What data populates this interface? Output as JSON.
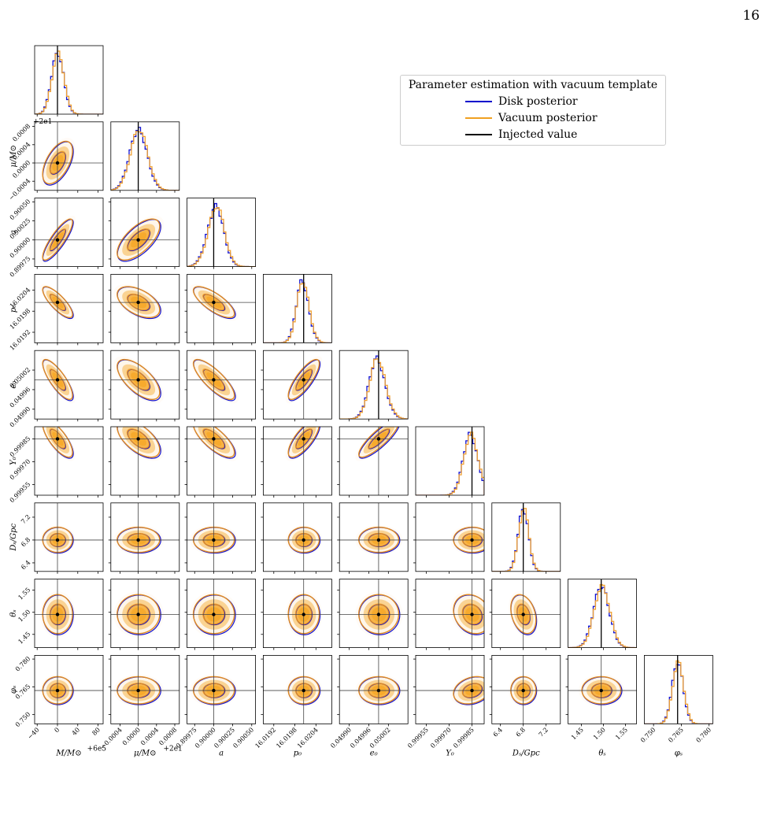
{
  "page_number": "16",
  "chart_data": {
    "type": "corner",
    "legend": {
      "title": "Parameter estimation with vacuum template",
      "placement": "upper-right",
      "entries": [
        {
          "label": "Disk posterior",
          "color": "#0000cc"
        },
        {
          "label": "Vacuum posterior",
          "color": "#f0a020"
        },
        {
          "label": "Injected value",
          "color": "#000000"
        }
      ]
    },
    "colors": {
      "disk": "#1010d0",
      "vacuum": "#f0a030",
      "vacuum_contour": "#e08a20",
      "fill_inner": "#f6a82a",
      "fill_outer": "#fde6c4",
      "injected": "#000000"
    },
    "parameters": [
      {
        "label": "M/M⊙",
        "offset_label": "+6e5",
        "injected": 0,
        "range": [
          -45,
          90
        ],
        "ticks": [
          -40,
          0,
          40,
          80
        ],
        "tick_labels": [
          "−40",
          "0",
          "40",
          "80"
        ],
        "sigma": 12
      },
      {
        "label": "μ/M⊙",
        "offset_label": "+2e1",
        "injected": 0,
        "range": [
          -0.0006,
          0.0009
        ],
        "ticks": [
          -0.0004,
          0.0,
          0.0004,
          0.0008
        ],
        "tick_labels": [
          "−0.0004",
          "0.0000",
          "0.0004",
          "0.0008"
        ],
        "sigma": 0.00019
      },
      {
        "label": "a",
        "offset_label": "",
        "injected": 0.9,
        "range": [
          0.89965,
          0.90055
        ],
        "ticks": [
          0.89975,
          0.9,
          0.90025,
          0.9005
        ],
        "tick_labels": [
          "0.89975",
          "0.90000",
          "0.90025",
          "0.90050"
        ],
        "sigma": 0.00011
      },
      {
        "label": "p₀",
        "offset_label": "",
        "injected": 16.02005,
        "range": [
          16.0189,
          16.02085
        ],
        "ticks": [
          16.0192,
          16.0198,
          16.0204
        ],
        "tick_labels": [
          "16.0192",
          "16.0198",
          "16.0204"
        ],
        "sigma": 0.00018
      },
      {
        "label": "e₀",
        "offset_label": "",
        "injected": 0.04999,
        "range": [
          0.04987,
          0.05008
        ],
        "ticks": [
          0.0499,
          0.04996,
          0.05002
        ],
        "tick_labels": [
          "0.04990",
          "0.04996",
          "0.05002"
        ],
        "sigma": 2.5e-05
      },
      {
        "label": "Y₀",
        "offset_label": "",
        "injected": 0.99985,
        "range": [
          0.99948,
          0.99993
        ],
        "ticks": [
          0.99955,
          0.9997,
          0.99985
        ],
        "tick_labels": [
          "0.99955",
          "0.99970",
          "0.99985"
        ],
        "sigma": 5e-05
      },
      {
        "label": "Dₛ/Gpc",
        "offset_label": "",
        "injected": 6.8,
        "range": [
          6.25,
          7.45
        ],
        "ticks": [
          6.4,
          6.8,
          7.2
        ],
        "tick_labels": [
          "6.4",
          "6.8",
          "7.2"
        ],
        "sigma": 0.09
      },
      {
        "label": "θₛ",
        "offset_label": "",
        "injected": 1.495,
        "range": [
          1.42,
          1.575
        ],
        "ticks": [
          1.45,
          1.5,
          1.55
        ],
        "tick_labels": [
          "1.45",
          "1.50",
          "1.55"
        ],
        "sigma": 0.018
      },
      {
        "label": "φₛ",
        "offset_label": "",
        "injected": 0.763,
        "range": [
          0.745,
          0.782
        ],
        "ticks": [
          0.75,
          0.765,
          0.78
        ],
        "tick_labels": [
          "0.750",
          "0.765",
          "0.780"
        ],
        "sigma": 0.003
      }
    ],
    "correlations": [
      [
        1,
        0.55,
        0.85,
        -0.8,
        -0.8,
        -0.75,
        0,
        0,
        0
      ],
      [
        0.55,
        1,
        0.65,
        -0.5,
        -0.65,
        -0.6,
        0,
        0,
        0
      ],
      [
        0.85,
        0.65,
        1,
        -0.75,
        -0.8,
        -0.75,
        0,
        0,
        0
      ],
      [
        -0.8,
        -0.5,
        -0.75,
        1,
        0.8,
        0.75,
        0,
        0,
        0
      ],
      [
        -0.8,
        -0.65,
        -0.8,
        0.8,
        1,
        0.85,
        0,
        0,
        0
      ],
      [
        -0.75,
        -0.6,
        -0.75,
        0.75,
        0.85,
        1,
        0,
        -0.2,
        0.25
      ],
      [
        0,
        0,
        0,
        0,
        0,
        0,
        1,
        -0.3,
        0
      ],
      [
        0,
        0,
        0,
        0,
        0,
        -0.2,
        -0.3,
        1,
        0
      ],
      [
        0,
        0,
        0,
        0,
        0,
        0.25,
        0,
        0,
        1
      ]
    ]
  }
}
